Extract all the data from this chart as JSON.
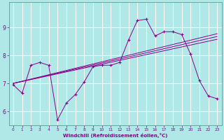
{
  "background_color": "#b0e8e8",
  "grid_color": "#ffffff",
  "line_color": "#880088",
  "xlabel": "Windchill (Refroidissement éolien,°C)",
  "xlabel_color": "#880088",
  "tick_color": "#880088",
  "axis_color": "#888888",
  "ylim": [
    5.5,
    9.9
  ],
  "xlim": [
    -0.5,
    23.5
  ],
  "yticks": [
    6,
    7,
    8,
    9
  ],
  "xticks": [
    0,
    1,
    2,
    3,
    4,
    5,
    6,
    7,
    8,
    9,
    10,
    11,
    12,
    13,
    14,
    15,
    16,
    17,
    18,
    19,
    20,
    21,
    22,
    23
  ],
  "main_x": [
    0,
    1,
    2,
    3,
    4,
    5,
    6,
    7,
    8,
    9,
    10,
    11,
    12,
    13,
    14,
    15,
    16,
    17,
    18,
    19,
    20,
    21,
    22,
    23
  ],
  "main_y": [
    6.95,
    6.65,
    7.65,
    7.75,
    7.65,
    5.7,
    6.3,
    6.6,
    7.05,
    7.6,
    7.65,
    7.65,
    7.75,
    8.55,
    9.25,
    9.3,
    8.7,
    8.85,
    8.85,
    8.75,
    8.05,
    7.1,
    6.55,
    6.45
  ],
  "trend1_x": [
    0,
    23
  ],
  "trend1_y": [
    7.0,
    8.8
  ],
  "trend2_x": [
    0,
    23
  ],
  "trend2_y": [
    7.05,
    8.7
  ],
  "trend3_x": [
    0,
    23
  ],
  "trend3_y": [
    7.1,
    8.55
  ],
  "figsize": [
    3.2,
    2.0
  ],
  "dpi": 100
}
